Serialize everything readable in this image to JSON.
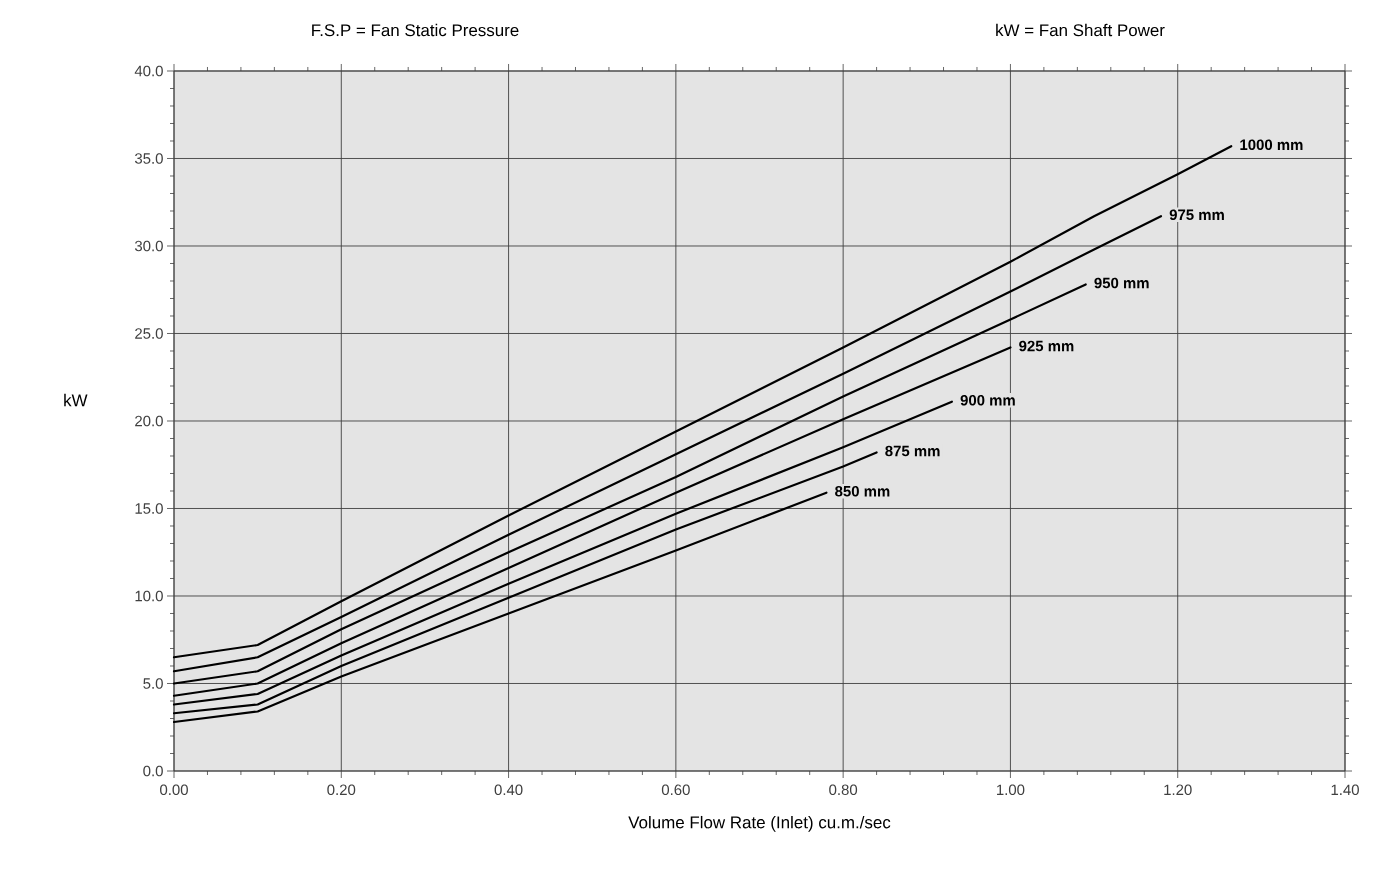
{
  "chart_data": {
    "type": "line",
    "xlabel": "Volume Flow Rate (Inlet) cu.m./sec",
    "ylabel": "kW",
    "annotations": [
      "F.S.P = Fan Static Pressure",
      "kW = Fan Shaft Power"
    ],
    "xlim": [
      0,
      1.4
    ],
    "ylim": [
      0,
      40
    ],
    "xticks": [
      {
        "value": 0,
        "label": "0.00"
      },
      {
        "value": 0.2,
        "label": "0.20"
      },
      {
        "value": 0.4,
        "label": "0.40"
      },
      {
        "value": 0.6,
        "label": "0.60"
      },
      {
        "value": 0.8,
        "label": "0.80"
      },
      {
        "value": 1.0,
        "label": "1.00"
      },
      {
        "value": 1.2,
        "label": "1.20"
      },
      {
        "value": 1.4,
        "label": "1.40"
      }
    ],
    "yticks": [
      {
        "value": 0,
        "label": "0.0"
      },
      {
        "value": 5,
        "label": "5.0"
      },
      {
        "value": 10,
        "label": "10.0"
      },
      {
        "value": 15,
        "label": "15.0"
      },
      {
        "value": 20,
        "label": "20.0"
      },
      {
        "value": 25,
        "label": "25.0"
      },
      {
        "value": 30,
        "label": "30.0"
      },
      {
        "value": 35,
        "label": "35.0"
      },
      {
        "value": 40,
        "label": "40.0"
      }
    ],
    "grid": true,
    "legend": false,
    "marker": "none",
    "line_style": "solid",
    "series": [
      {
        "name": "1000 mm",
        "color": "#000000",
        "x": [
          0,
          0.1,
          0.2,
          0.4,
          0.6,
          0.8,
          1.0,
          1.1,
          1.2,
          1.264
        ],
        "values": [
          6.5,
          7.2,
          9.7,
          14.6,
          19.4,
          24.2,
          29.1,
          31.7,
          34.1,
          35.7
        ]
      },
      {
        "name": "975 mm",
        "color": "#000000",
        "x": [
          0,
          0.1,
          0.2,
          0.4,
          0.6,
          0.8,
          1.0,
          1.1,
          1.18
        ],
        "values": [
          5.7,
          6.5,
          8.8,
          13.5,
          18.1,
          22.7,
          27.4,
          29.8,
          31.7
        ]
      },
      {
        "name": "950 mm",
        "color": "#000000",
        "x": [
          0,
          0.1,
          0.2,
          0.4,
          0.6,
          0.8,
          1.0,
          1.09
        ],
        "values": [
          5.0,
          5.7,
          8.1,
          12.5,
          16.8,
          21.4,
          25.8,
          27.8
        ]
      },
      {
        "name": "925 mm",
        "color": "#000000",
        "x": [
          0,
          0.1,
          0.2,
          0.4,
          0.6,
          0.8,
          1.0
        ],
        "values": [
          4.3,
          5.0,
          7.3,
          11.6,
          15.9,
          20.1,
          24.2
        ]
      },
      {
        "name": "900 mm",
        "color": "#000000",
        "x": [
          0,
          0.1,
          0.2,
          0.4,
          0.6,
          0.8,
          0.93
        ],
        "values": [
          3.8,
          4.4,
          6.6,
          10.7,
          14.7,
          18.5,
          21.1
        ]
      },
      {
        "name": "875 mm",
        "color": "#000000",
        "x": [
          0,
          0.1,
          0.2,
          0.4,
          0.6,
          0.8,
          0.84
        ],
        "values": [
          3.3,
          3.8,
          6.0,
          9.9,
          13.8,
          17.4,
          18.2
        ]
      },
      {
        "name": "850 mm",
        "color": "#000000",
        "x": [
          0,
          0.1,
          0.2,
          0.4,
          0.6,
          0.78
        ],
        "values": [
          2.8,
          3.4,
          5.4,
          9.0,
          12.6,
          15.9
        ]
      }
    ]
  }
}
